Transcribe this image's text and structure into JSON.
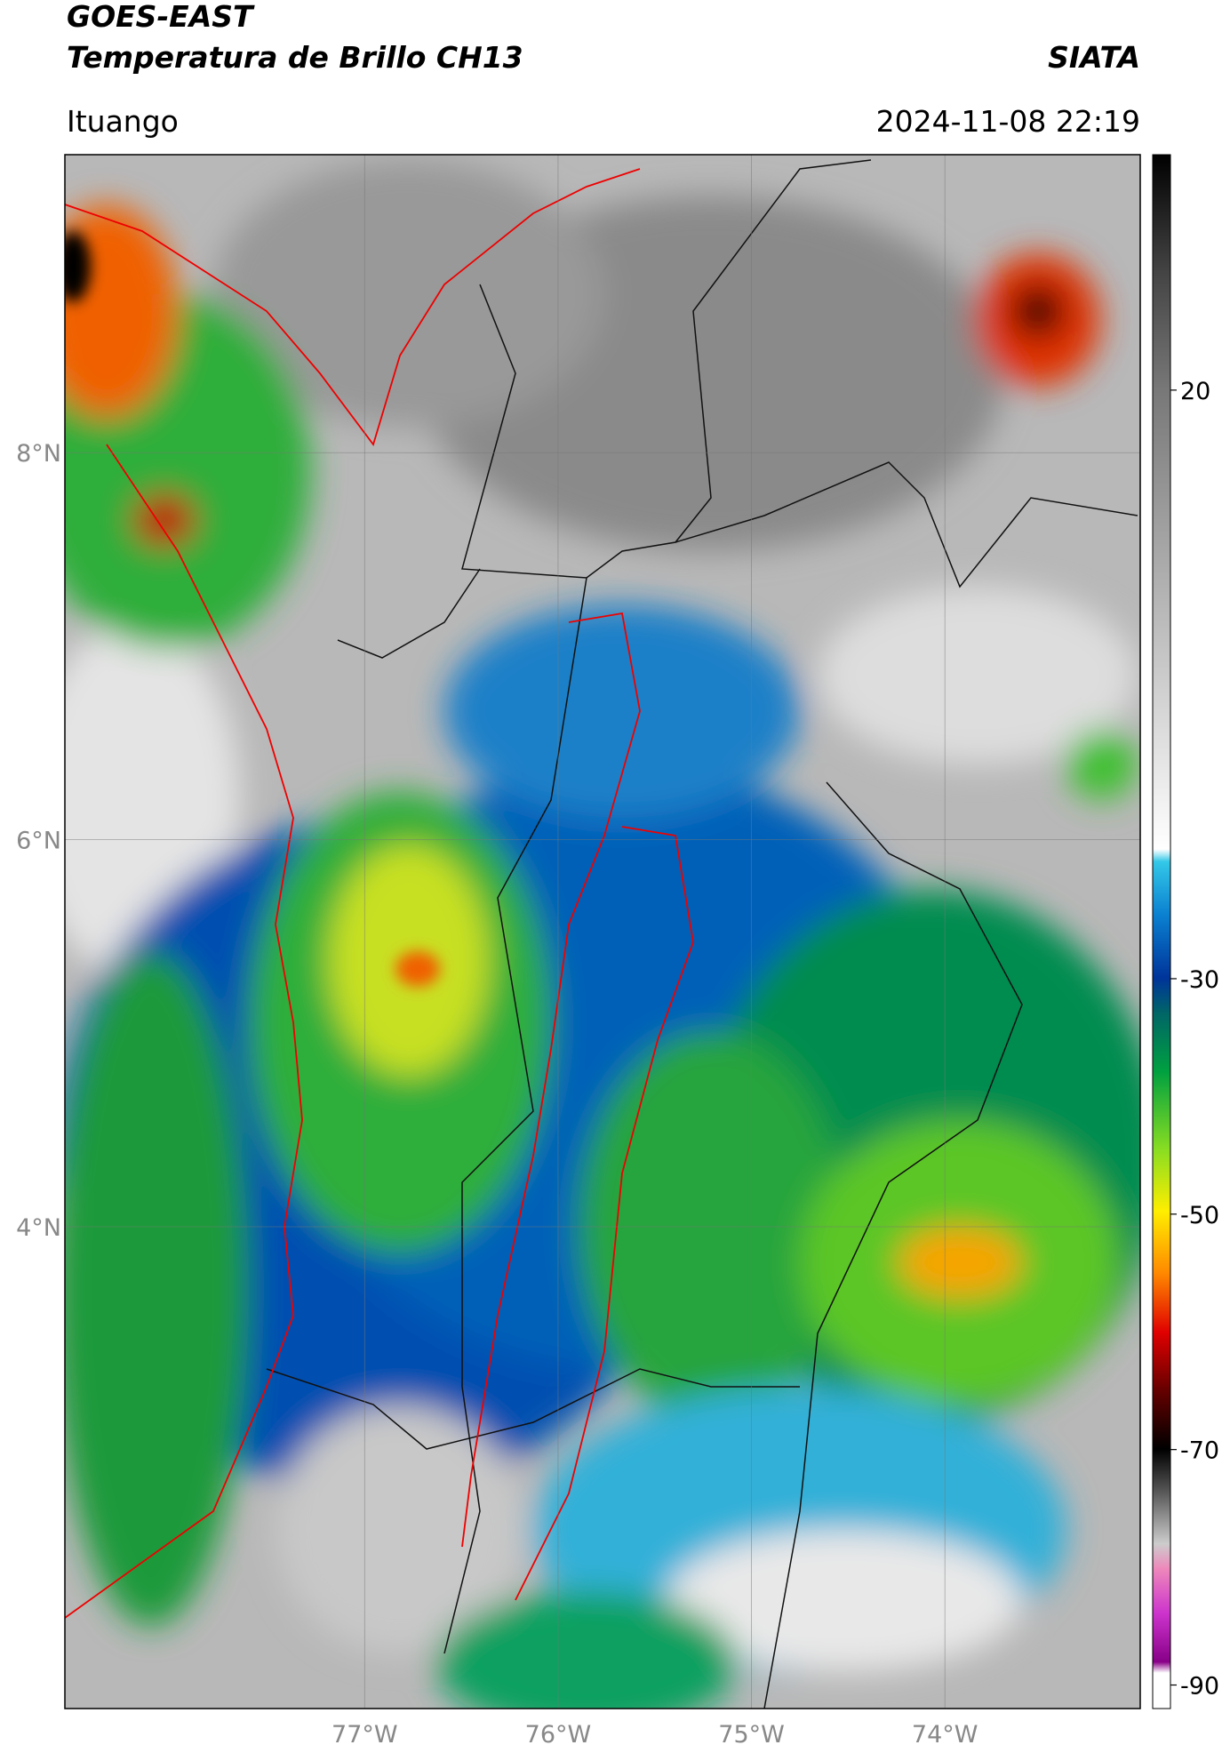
{
  "header": {
    "title": "GOES-EAST",
    "subtitle": "Temperatura de Brillo CH13",
    "brand": "SIATA",
    "location": "Ituango",
    "datetime": "2024-11-08 22:19"
  },
  "map": {
    "xlim": [
      -78.55,
      -72.99
    ],
    "ylim": [
      1.51,
      9.54
    ],
    "lat_ticks": [
      {
        "value": 8,
        "label": "8°N"
      },
      {
        "value": 6,
        "label": "6°N"
      },
      {
        "value": 4,
        "label": "4°N"
      }
    ],
    "lon_ticks": [
      {
        "value": -77,
        "label": "77°W"
      },
      {
        "value": -76,
        "label": "76°W"
      },
      {
        "value": -75,
        "label": "75°W"
      },
      {
        "value": -74,
        "label": "74°W"
      }
    ]
  },
  "colorbar": {
    "lim": [
      40,
      -92
    ],
    "ticks": [
      20,
      -30,
      -50,
      -70,
      -90
    ]
  }
}
